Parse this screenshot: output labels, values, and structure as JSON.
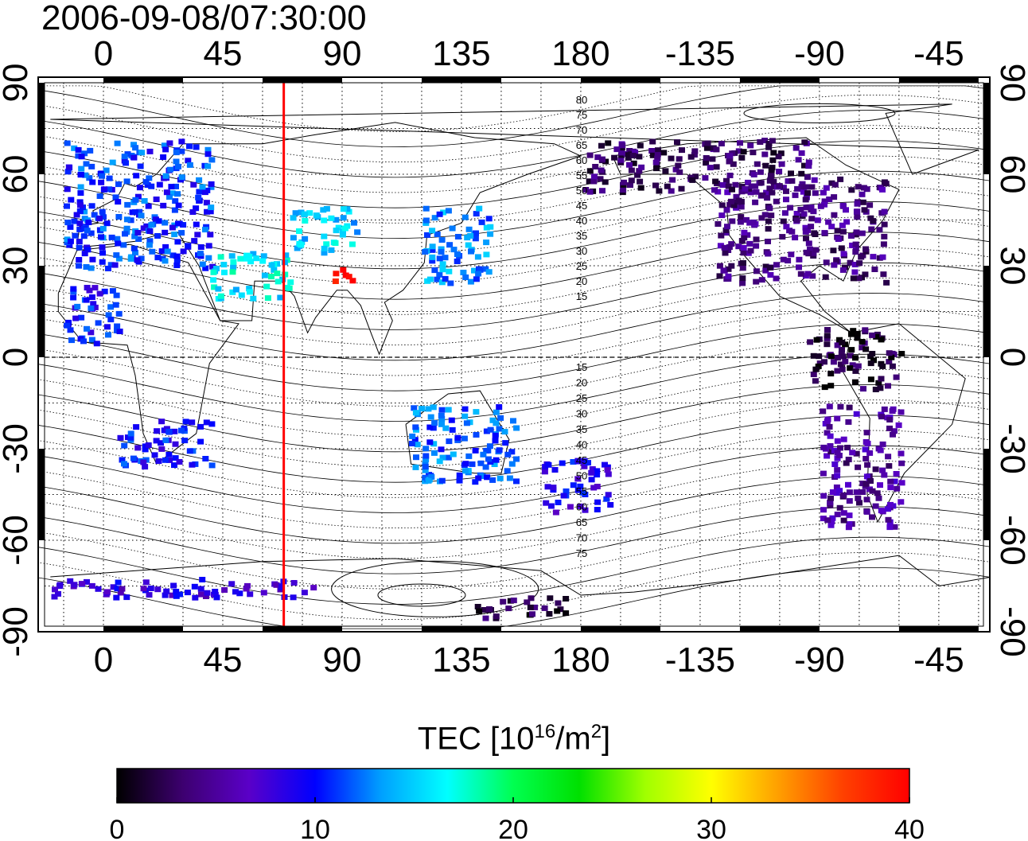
{
  "title": "2006-09-08/07:30:00",
  "map": {
    "lon_ticks": [
      "0",
      "45",
      "90",
      "135",
      "180",
      "-135",
      "-90",
      "-45"
    ],
    "lon_values": [
      0,
      45,
      90,
      135,
      180,
      225,
      270,
      315
    ],
    "lat_ticks": [
      "90",
      "60",
      "30",
      "0",
      "-30",
      "-60",
      "-90"
    ],
    "lat_values": [
      90,
      60,
      30,
      0,
      -30,
      -60,
      -90
    ],
    "lon_range": [
      -25,
      335
    ],
    "lat_range": [
      -95,
      95
    ],
    "highlight_meridian_lon": 68,
    "highlight_color": "#ff0000",
    "grid": "dotted",
    "contour_labels_north": [
      "80",
      "75",
      "70",
      "65",
      "60",
      "55",
      "50",
      "45",
      "40",
      "35",
      "30",
      "25",
      "20",
      "15"
    ],
    "contour_labels_south": [
      "15",
      "20",
      "25",
      "30",
      "35",
      "40",
      "45",
      "50",
      "55",
      "60",
      "65",
      "70",
      "75"
    ]
  },
  "colorbar": {
    "label_main": "TEC  [10",
    "label_exp1": "16",
    "label_mid": "/m",
    "label_exp2": "2",
    "label_end": "]",
    "ticks": [
      "0",
      "10",
      "20",
      "30",
      "40"
    ],
    "range": [
      0,
      40
    ],
    "colors": [
      "#000000",
      "#3d0070",
      "#5a00c8",
      "#0000ff",
      "#00a0ff",
      "#00ffff",
      "#00ff50",
      "#00e000",
      "#a0ff00",
      "#ffff00",
      "#ffa000",
      "#ff4000",
      "#ff0000"
    ]
  },
  "chart_data": {
    "type": "heatmap",
    "title": "2006-09-08/07:30:00",
    "value_label": "TEC  [10^16/m^2]",
    "lon_range": [
      -25,
      335
    ],
    "lat_range": [
      -90,
      90
    ],
    "value_range": [
      0,
      40
    ],
    "regions": [
      {
        "lon": [
          -15,
          40
        ],
        "lat": [
          30,
          72
        ],
        "value": 11
      },
      {
        "lon": [
          40,
          70
        ],
        "lat": [
          20,
          35
        ],
        "value": 16
      },
      {
        "lon": [
          70,
          95
        ],
        "lat": [
          35,
          50
        ],
        "value": 15
      },
      {
        "lon": [
          120,
          145
        ],
        "lat": [
          25,
          50
        ],
        "value": 13
      },
      {
        "lon": [
          85,
          95
        ],
        "lat": [
          25,
          30
        ],
        "value": 40
      },
      {
        "lon": [
          5,
          40
        ],
        "lat": [
          -35,
          -20
        ],
        "value": 10
      },
      {
        "lon": [
          -15,
          5
        ],
        "lat": [
          5,
          25
        ],
        "value": 10
      },
      {
        "lon": [
          115,
          155
        ],
        "lat": [
          -40,
          -15
        ],
        "value": 12
      },
      {
        "lon": [
          165,
          190
        ],
        "lat": [
          -50,
          -33
        ],
        "value": 9
      },
      {
        "lon": [
          230,
          295
        ],
        "lat": [
          25,
          60
        ],
        "value": 4
      },
      {
        "lon": [
          180,
          265
        ],
        "lat": [
          55,
          72
        ],
        "value": 3
      },
      {
        "lon": [
          270,
          300
        ],
        "lat": [
          -55,
          -15
        ],
        "value": 5
      },
      {
        "lon": [
          265,
          300
        ],
        "lat": [
          -10,
          10
        ],
        "value": 2
      },
      {
        "lon": [
          140,
          175
        ],
        "lat": [
          -85,
          -78
        ],
        "value": 2
      },
      {
        "lon": [
          -20,
          80
        ],
        "lat": [
          -78,
          -72
        ],
        "value": 8
      }
    ]
  }
}
